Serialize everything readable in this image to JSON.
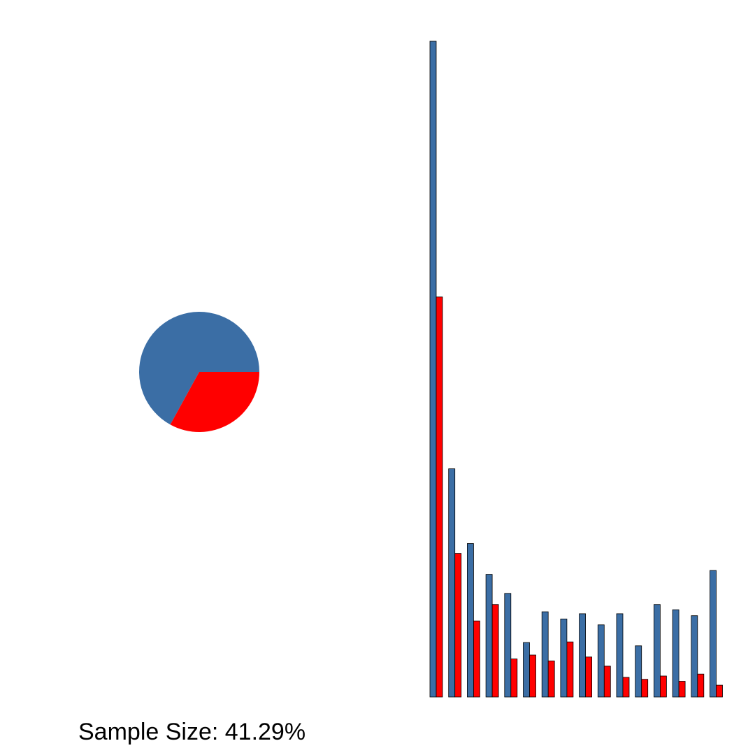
{
  "caption": "Sample Size: 41.29%",
  "colors": {
    "series_a": "#3b6ea5",
    "series_b": "#ff0000",
    "outline": "#000000"
  },
  "chart_data": [
    {
      "type": "pie",
      "slices": [
        {
          "value": 0.67,
          "color": "#3b6ea5"
        },
        {
          "value": 0.33,
          "color": "#ff0000"
        }
      ]
    },
    {
      "type": "bar",
      "ylim": [
        0,
        100
      ],
      "grid": false,
      "series": [
        {
          "color": "#3b6ea5",
          "values": [
            100,
            34.8,
            23.4,
            18.7,
            15.8,
            8.3,
            13.0,
            11.9,
            12.7,
            11.0,
            12.7,
            7.8,
            14.1,
            13.3,
            12.4,
            19.3
          ]
        },
        {
          "color": "#ff0000",
          "values": [
            61,
            21.9,
            11.6,
            14.1,
            5.8,
            6.4,
            5.5,
            8.4,
            6.1,
            4.7,
            3.0,
            2.7,
            3.2,
            2.4,
            3.5,
            1.8
          ]
        }
      ]
    }
  ]
}
